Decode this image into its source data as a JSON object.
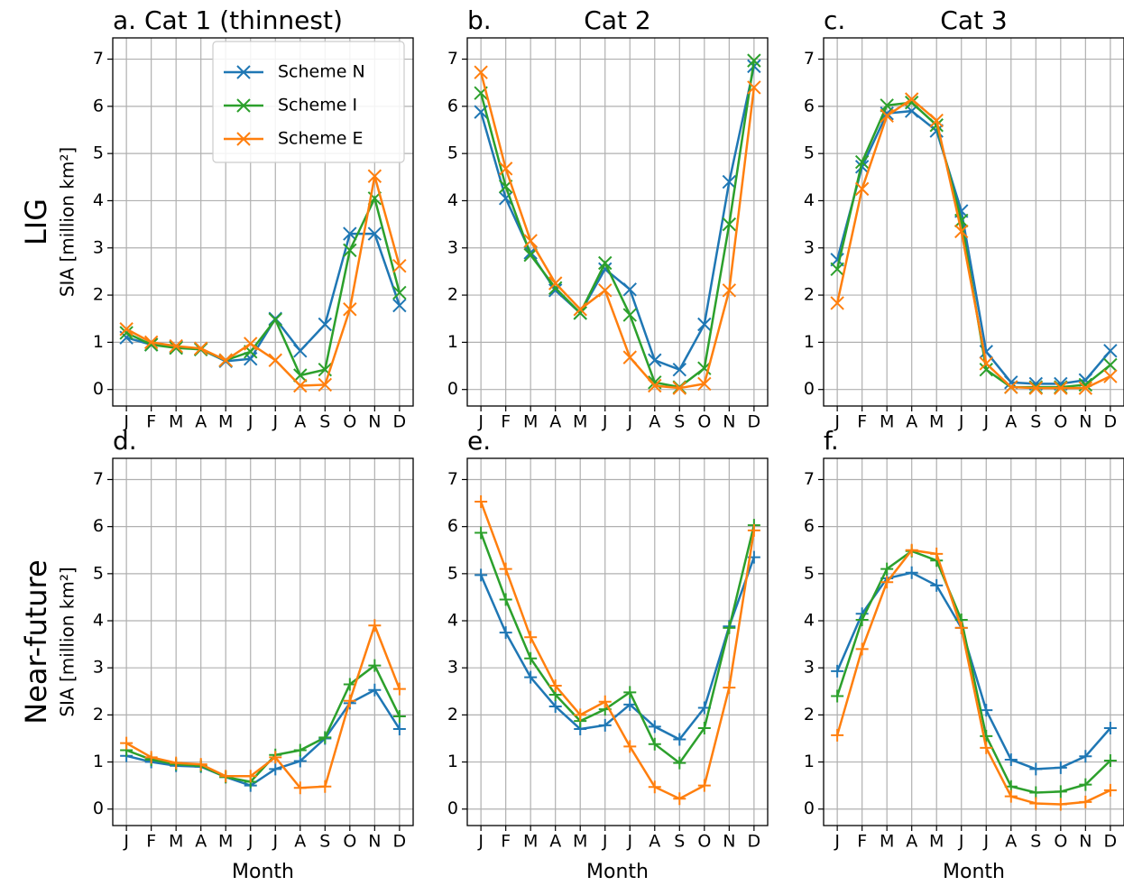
{
  "chart_data": [
    {
      "type": "line",
      "title": "a. Cat 1 (thinnest)",
      "row_label": "LIG",
      "ylabel": "SIA [million km²]",
      "marker": "x",
      "legend": "upper right",
      "grid": true,
      "categories": [
        "J",
        "F",
        "M",
        "A",
        "M",
        "J",
        "J",
        "A",
        "S",
        "O",
        "N",
        "D"
      ],
      "ylim": [
        -0.35,
        7.45
      ],
      "yticks": [
        0,
        1,
        2,
        3,
        4,
        5,
        6,
        7
      ],
      "series": [
        {
          "name": "Scheme N",
          "color": "#1f77b4",
          "values": [
            1.1,
            0.95,
            0.9,
            0.85,
            0.6,
            0.65,
            1.5,
            0.82,
            1.38,
            3.3,
            3.3,
            1.78
          ]
        },
        {
          "name": "Scheme I",
          "color": "#2ca02c",
          "values": [
            1.2,
            0.95,
            0.88,
            0.85,
            0.62,
            0.8,
            1.48,
            0.3,
            0.42,
            2.95,
            4.05,
            2.05
          ]
        },
        {
          "name": "Scheme E",
          "color": "#ff7f0e",
          "values": [
            1.28,
            1.0,
            0.92,
            0.87,
            0.62,
            0.97,
            0.62,
            0.08,
            0.1,
            1.7,
            4.52,
            2.62
          ]
        }
      ]
    },
    {
      "type": "line",
      "panel_label": "b.",
      "title": "Cat 2",
      "marker": "x",
      "grid": true,
      "categories": [
        "J",
        "F",
        "M",
        "A",
        "M",
        "J",
        "J",
        "A",
        "S",
        "O",
        "N",
        "D"
      ],
      "ylim": [
        -0.35,
        7.45
      ],
      "yticks": [
        0,
        1,
        2,
        3,
        4,
        5,
        6,
        7
      ],
      "series": [
        {
          "color": "#1f77b4",
          "values": [
            5.88,
            4.05,
            2.9,
            2.1,
            1.62,
            2.55,
            2.12,
            0.62,
            0.42,
            1.38,
            4.4,
            6.85
          ]
        },
        {
          "color": "#2ca02c",
          "values": [
            6.28,
            4.3,
            2.85,
            2.15,
            1.62,
            2.68,
            1.58,
            0.15,
            0.05,
            0.45,
            3.5,
            6.97
          ]
        },
        {
          "color": "#ff7f0e",
          "values": [
            6.72,
            4.68,
            3.15,
            2.25,
            1.7,
            2.1,
            0.68,
            0.08,
            0.03,
            0.12,
            2.1,
            6.4
          ]
        }
      ]
    },
    {
      "type": "line",
      "panel_label": "c.",
      "title": "Cat 3",
      "marker": "x",
      "grid": true,
      "categories": [
        "J",
        "F",
        "M",
        "A",
        "M",
        "J",
        "J",
        "A",
        "S",
        "O",
        "N",
        "D"
      ],
      "ylim": [
        -0.35,
        7.45
      ],
      "yticks": [
        0,
        1,
        2,
        3,
        4,
        5,
        6,
        7
      ],
      "series": [
        {
          "color": "#1f77b4",
          "values": [
            2.75,
            4.72,
            5.85,
            5.9,
            5.48,
            3.78,
            0.8,
            0.15,
            0.12,
            0.12,
            0.2,
            0.82
          ]
        },
        {
          "color": "#2ca02c",
          "values": [
            2.55,
            4.82,
            6.02,
            6.08,
            5.6,
            3.58,
            0.42,
            0.05,
            0.05,
            0.05,
            0.1,
            0.52
          ]
        },
        {
          "color": "#ff7f0e",
          "values": [
            1.83,
            4.25,
            5.8,
            6.15,
            5.7,
            3.35,
            0.55,
            0.05,
            0.03,
            0.03,
            0.03,
            0.28
          ]
        }
      ]
    },
    {
      "type": "line",
      "panel_label": "d.",
      "row_label": "Near-future",
      "ylabel": "SIA [million km²]",
      "xlabel": "Month",
      "marker": "+",
      "grid": true,
      "categories": [
        "J",
        "F",
        "M",
        "A",
        "M",
        "J",
        "J",
        "A",
        "S",
        "O",
        "N",
        "D"
      ],
      "ylim": [
        -0.35,
        7.45
      ],
      "yticks": [
        0,
        1,
        2,
        3,
        4,
        5,
        6,
        7
      ],
      "series": [
        {
          "color": "#1f77b4",
          "values": [
            1.13,
            1.0,
            0.92,
            0.9,
            0.68,
            0.5,
            0.85,
            1.02,
            1.5,
            2.25,
            2.53,
            1.7
          ]
        },
        {
          "color": "#2ca02c",
          "values": [
            1.25,
            1.05,
            0.95,
            0.92,
            0.68,
            0.58,
            1.15,
            1.25,
            1.52,
            2.65,
            3.05,
            1.97
          ]
        },
        {
          "color": "#ff7f0e",
          "values": [
            1.4,
            1.1,
            0.98,
            0.95,
            0.7,
            0.7,
            1.1,
            0.45,
            0.48,
            2.3,
            3.9,
            2.55
          ]
        }
      ]
    },
    {
      "type": "line",
      "panel_label": "e.",
      "xlabel": "Month",
      "marker": "+",
      "grid": true,
      "categories": [
        "J",
        "F",
        "M",
        "A",
        "M",
        "J",
        "J",
        "A",
        "S",
        "O",
        "N",
        "D"
      ],
      "ylim": [
        -0.35,
        7.45
      ],
      "yticks": [
        0,
        1,
        2,
        3,
        4,
        5,
        6,
        7
      ],
      "series": [
        {
          "color": "#1f77b4",
          "values": [
            4.97,
            3.75,
            2.8,
            2.18,
            1.7,
            1.78,
            2.22,
            1.75,
            1.48,
            2.15,
            3.88,
            5.35
          ]
        },
        {
          "color": "#2ca02c",
          "values": [
            5.87,
            4.45,
            3.2,
            2.43,
            1.87,
            2.12,
            2.48,
            1.38,
            0.98,
            1.72,
            3.85,
            6.03
          ]
        },
        {
          "color": "#ff7f0e",
          "values": [
            6.53,
            5.1,
            3.65,
            2.62,
            2.0,
            2.28,
            1.33,
            0.47,
            0.22,
            0.5,
            2.58,
            5.92
          ]
        }
      ]
    },
    {
      "type": "line",
      "panel_label": "f.",
      "xlabel": "Month",
      "marker": "+",
      "grid": true,
      "categories": [
        "J",
        "F",
        "M",
        "A",
        "M",
        "J",
        "J",
        "A",
        "S",
        "O",
        "N",
        "D"
      ],
      "ylim": [
        -0.35,
        7.45
      ],
      "yticks": [
        0,
        1,
        2,
        3,
        4,
        5,
        6,
        7
      ],
      "series": [
        {
          "color": "#1f77b4",
          "values": [
            2.93,
            4.15,
            4.9,
            5.02,
            4.75,
            3.85,
            2.1,
            1.05,
            0.85,
            0.88,
            1.12,
            1.72
          ]
        },
        {
          "color": "#2ca02c",
          "values": [
            2.4,
            4.02,
            5.1,
            5.48,
            5.28,
            4.02,
            1.55,
            0.48,
            0.35,
            0.37,
            0.52,
            1.03
          ]
        },
        {
          "color": "#ff7f0e",
          "values": [
            1.57,
            3.4,
            4.82,
            5.5,
            5.42,
            3.85,
            1.3,
            0.27,
            0.12,
            0.1,
            0.15,
            0.4
          ]
        }
      ]
    }
  ]
}
